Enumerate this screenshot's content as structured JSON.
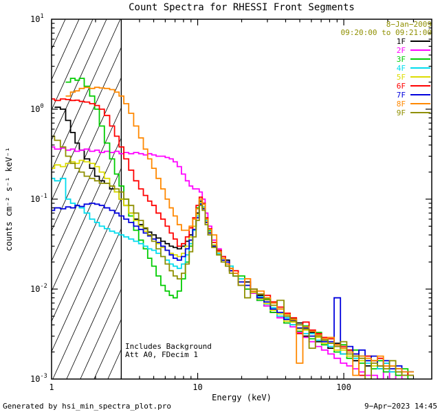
{
  "title": "Count Spectra for RHESSI Front Segments",
  "header": {
    "date": "8−Jan−2009",
    "interval": "09:20:00 to 09:21:00",
    "accent_color": "#8f8f00"
  },
  "annotations": {
    "background": "Includes Background",
    "att": "Att A0, FDecim 1"
  },
  "footer": {
    "left": "Generated by hsi_min_spectra_plot.pro",
    "right": "9−Apr−2023 14:45"
  },
  "chart_data": {
    "type": "line",
    "style": "histogram-step",
    "title": "Count Spectra for RHESSI Front Segments",
    "xlabel": "Energy (keV)",
    "ylabel": "counts cm⁻² s⁻¹ keV⁻¹",
    "xscale": "log",
    "yscale": "log",
    "xlim": [
      1,
      400
    ],
    "ylim": [
      0.001,
      10
    ],
    "x_ticks": [
      1,
      10,
      100
    ],
    "y_tick_exponents": [
      1,
      0,
      -1,
      -2,
      -3
    ],
    "grid": false,
    "legend_position": "upper-right-inside",
    "hatch_region": {
      "xmin": 1,
      "xmax": 3
    },
    "x": [
      1.0,
      1.1,
      1.2,
      1.3,
      1.4,
      1.5,
      1.6,
      1.75,
      1.9,
      2.05,
      2.2,
      2.4,
      2.6,
      2.8,
      3.0,
      3.25,
      3.5,
      3.8,
      4.1,
      4.4,
      4.7,
      5.0,
      5.4,
      5.8,
      6.2,
      6.6,
      7.0,
      7.5,
      8.0,
      8.5,
      9.0,
      9.5,
      10.0,
      10.5,
      11.0,
      11.5,
      12.0,
      13,
      14,
      15,
      16,
      17,
      18,
      20,
      22,
      24,
      27,
      30,
      33,
      37,
      41,
      45,
      50,
      55,
      61,
      67,
      74,
      82,
      90,
      100,
      110,
      121,
      133,
      147,
      162,
      178,
      196,
      216,
      238,
      262,
      288
    ],
    "series": [
      {
        "name": "1F",
        "color": "#000000",
        "y": [
          null,
          1.05,
          1.0,
          0.75,
          0.55,
          0.42,
          0.35,
          0.28,
          0.22,
          0.18,
          0.16,
          0.15,
          0.13,
          0.12,
          0.1,
          0.085,
          0.07,
          0.06,
          0.052,
          0.047,
          0.043,
          0.04,
          0.037,
          0.034,
          0.032,
          0.03,
          0.029,
          0.028,
          0.03,
          0.034,
          0.04,
          0.05,
          0.07,
          0.095,
          0.08,
          0.055,
          0.042,
          0.03,
          0.027,
          0.02,
          0.021,
          0.016,
          0.014,
          0.012,
          0.012,
          0.009,
          0.0085,
          0.0065,
          0.0055,
          0.005,
          0.005,
          0.004,
          0.0042,
          0.003,
          0.0033,
          0.0026,
          0.0028,
          0.0022,
          0.0025,
          0.0019,
          0.0021,
          0.0016,
          0.0018,
          0.0014,
          0.0016,
          0.0013,
          0.0015,
          0.0012,
          0.0013,
          0.0011,
          0.0012
        ]
      },
      {
        "name": "2F",
        "color": "#ff00ff",
        "y": [
          0.38,
          0.36,
          0.37,
          0.35,
          0.36,
          0.34,
          0.35,
          0.36,
          0.34,
          0.35,
          0.33,
          0.34,
          0.33,
          0.34,
          0.32,
          0.33,
          0.32,
          0.33,
          0.32,
          0.31,
          0.32,
          0.31,
          0.3,
          0.3,
          0.29,
          0.28,
          0.26,
          0.23,
          0.19,
          0.16,
          0.14,
          0.13,
          0.13,
          0.12,
          0.1,
          0.07,
          0.05,
          0.035,
          0.028,
          0.023,
          0.019,
          0.016,
          0.014,
          0.012,
          0.01,
          0.009,
          0.0075,
          0.0065,
          0.0055,
          0.0048,
          0.0042,
          0.0038,
          0.0033,
          0.0029,
          0.0026,
          0.0023,
          0.0021,
          0.0019,
          0.0017,
          0.0015,
          0.0014,
          0.0013,
          0.0012,
          0.0011,
          0.0011,
          0.001,
          0.0012,
          0.001,
          0.0011,
          0.001,
          0.001
        ]
      },
      {
        "name": "3F",
        "color": "#00cc00",
        "y": [
          null,
          null,
          null,
          2.0,
          2.2,
          2.1,
          2.2,
          1.8,
          1.4,
          1.0,
          0.65,
          0.42,
          0.28,
          0.19,
          0.14,
          0.1,
          0.065,
          0.045,
          0.035,
          0.028,
          0.022,
          0.018,
          0.014,
          0.011,
          0.0095,
          0.0085,
          0.008,
          0.0095,
          0.013,
          0.02,
          0.03,
          0.05,
          0.08,
          0.1,
          0.09,
          0.06,
          0.045,
          0.03,
          0.024,
          0.021,
          0.018,
          0.018,
          0.014,
          0.014,
          0.01,
          0.01,
          0.0075,
          0.0078,
          0.0055,
          0.006,
          0.0042,
          0.0047,
          0.0034,
          0.0039,
          0.0028,
          0.0033,
          0.0024,
          0.0028,
          0.002,
          0.0024,
          0.0017,
          0.0021,
          0.0015,
          0.0018,
          0.0013,
          0.0016,
          0.0012,
          0.0014,
          0.0011,
          0.0013,
          0.001
        ]
      },
      {
        "name": "4F",
        "color": "#00dcee",
        "y": [
          0.17,
          0.16,
          0.17,
          0.1,
          0.09,
          0.085,
          0.08,
          0.07,
          0.06,
          0.055,
          0.05,
          0.047,
          0.044,
          0.042,
          0.04,
          0.038,
          0.036,
          0.034,
          0.032,
          0.03,
          0.028,
          0.027,
          0.025,
          0.023,
          0.021,
          0.019,
          0.018,
          0.017,
          0.019,
          0.024,
          0.032,
          0.045,
          0.065,
          0.09,
          0.082,
          0.058,
          0.044,
          0.031,
          0.025,
          0.023,
          0.018,
          0.018,
          0.014,
          0.013,
          0.011,
          0.0092,
          0.0082,
          0.0068,
          0.0062,
          0.005,
          0.0048,
          0.004,
          0.004,
          0.0032,
          0.0032,
          0.0027,
          0.0027,
          0.0023,
          0.0023,
          0.0019,
          0.002,
          0.0017,
          0.0018,
          0.0015,
          0.0016,
          0.0013,
          0.0015,
          0.0012,
          0.0013,
          0.0011,
          0.0012
        ]
      },
      {
        "name": "5F",
        "color": "#dcdc00",
        "y": [
          0.22,
          0.24,
          0.23,
          0.25,
          0.26,
          0.25,
          0.27,
          0.26,
          0.25,
          0.23,
          0.2,
          0.17,
          0.14,
          0.12,
          0.1,
          0.085,
          0.07,
          0.058,
          0.05,
          0.044,
          0.04,
          0.036,
          0.032,
          0.029,
          0.027,
          0.025,
          0.024,
          0.023,
          0.025,
          0.03,
          0.038,
          0.05,
          0.068,
          0.092,
          0.08,
          0.056,
          0.043,
          0.031,
          0.026,
          0.021,
          0.019,
          0.016,
          0.015,
          0.012,
          0.011,
          0.0092,
          0.0078,
          0.0069,
          0.0058,
          0.0053,
          0.0044,
          0.0043,
          0.0036,
          0.0035,
          0.003,
          0.0029,
          0.0025,
          0.0025,
          0.0021,
          0.0021,
          0.0018,
          0.0018,
          0.0016,
          0.0016,
          0.0014,
          0.0014,
          0.0013,
          0.0013,
          0.0012,
          0.0011,
          0.0011
        ]
      },
      {
        "name": "6F",
        "color": "#ff0000",
        "y": [
          1.3,
          1.25,
          1.3,
          1.28,
          1.25,
          1.26,
          1.22,
          1.2,
          1.15,
          1.1,
          1.0,
          0.85,
          0.65,
          0.5,
          0.38,
          0.28,
          0.21,
          0.16,
          0.13,
          0.11,
          0.095,
          0.085,
          0.07,
          0.06,
          0.05,
          0.042,
          0.036,
          0.03,
          0.032,
          0.038,
          0.048,
          0.062,
          0.085,
          0.105,
          0.09,
          0.062,
          0.047,
          0.033,
          0.027,
          0.023,
          0.02,
          0.017,
          0.016,
          0.011,
          0.013,
          0.01,
          0.0088,
          0.0085,
          0.0072,
          0.0063,
          0.0054,
          0.0048,
          0.0032,
          0.0043,
          0.0035,
          0.0032,
          0.0029,
          0.0028,
          0.0024,
          0.0023,
          0.0021,
          0.0019,
          0.0011,
          0.0018,
          0.0016,
          0.0017,
          0.0014,
          0.0014,
          0.0013,
          0.0012,
          0.0011
        ]
      },
      {
        "name": "7F",
        "color": "#0000dd",
        "y": [
          0.075,
          0.08,
          0.078,
          0.082,
          0.08,
          0.085,
          0.083,
          0.088,
          0.09,
          0.088,
          0.085,
          0.08,
          0.075,
          0.07,
          0.065,
          0.06,
          0.055,
          0.05,
          0.046,
          0.042,
          0.039,
          0.036,
          0.033,
          0.03,
          0.027,
          0.024,
          0.022,
          0.021,
          0.023,
          0.028,
          0.035,
          0.046,
          0.062,
          0.088,
          0.078,
          0.055,
          0.042,
          0.03,
          0.026,
          0.021,
          0.02,
          0.016,
          0.015,
          0.012,
          0.011,
          0.0095,
          0.008,
          0.0072,
          0.006,
          0.0055,
          0.0046,
          0.0045,
          0.0037,
          0.0037,
          0.003,
          0.0031,
          0.0026,
          0.0026,
          0.008,
          0.0022,
          0.0023,
          0.0019,
          0.0021,
          0.0016,
          0.0018,
          0.0014,
          0.0016,
          0.0013,
          0.0014,
          0.0012,
          0.0012
        ]
      },
      {
        "name": "8F",
        "color": "#ff8800",
        "y": [
          null,
          null,
          null,
          1.4,
          1.55,
          1.6,
          1.7,
          1.75,
          1.7,
          1.75,
          1.72,
          1.7,
          1.65,
          1.55,
          1.4,
          1.15,
          0.9,
          0.65,
          0.48,
          0.36,
          0.28,
          0.22,
          0.17,
          0.13,
          0.1,
          0.08,
          0.065,
          0.052,
          0.045,
          0.045,
          0.05,
          0.06,
          0.078,
          0.1,
          0.088,
          0.06,
          0.046,
          0.04,
          0.026,
          0.022,
          0.019,
          0.017,
          0.015,
          0.011,
          0.013,
          0.0095,
          0.0095,
          0.008,
          0.007,
          0.006,
          0.0052,
          0.0046,
          0.0015,
          0.0038,
          0.0034,
          0.0031,
          0.0028,
          0.0029,
          0.0024,
          0.0022,
          0.002,
          0.0011,
          0.0018,
          0.0017,
          0.0016,
          0.0018,
          0.0014,
          0.0014,
          0.0013,
          0.0012,
          0.0012
        ]
      },
      {
        "name": "9F",
        "color": "#8f8f00",
        "y": [
          0.5,
          0.45,
          0.38,
          0.3,
          0.25,
          0.22,
          0.2,
          0.18,
          0.17,
          0.16,
          0.15,
          0.15,
          0.14,
          0.13,
          0.12,
          0.1,
          0.085,
          0.07,
          0.058,
          0.048,
          0.04,
          0.034,
          0.028,
          0.023,
          0.019,
          0.016,
          0.014,
          0.013,
          0.015,
          0.019,
          0.026,
          0.038,
          0.058,
          0.085,
          0.075,
          0.052,
          0.04,
          0.029,
          0.024,
          0.02,
          0.018,
          0.015,
          0.014,
          0.011,
          0.008,
          0.01,
          0.0088,
          0.0076,
          0.0066,
          0.0075,
          0.005,
          0.0044,
          0.004,
          0.0036,
          0.0022,
          0.003,
          0.0027,
          0.0025,
          0.0023,
          0.0026,
          0.0019,
          0.0018,
          0.0017,
          0.001,
          0.0015,
          0.0014,
          0.0013,
          0.0016,
          0.0012,
          0.0011,
          0.0011
        ]
      }
    ]
  }
}
